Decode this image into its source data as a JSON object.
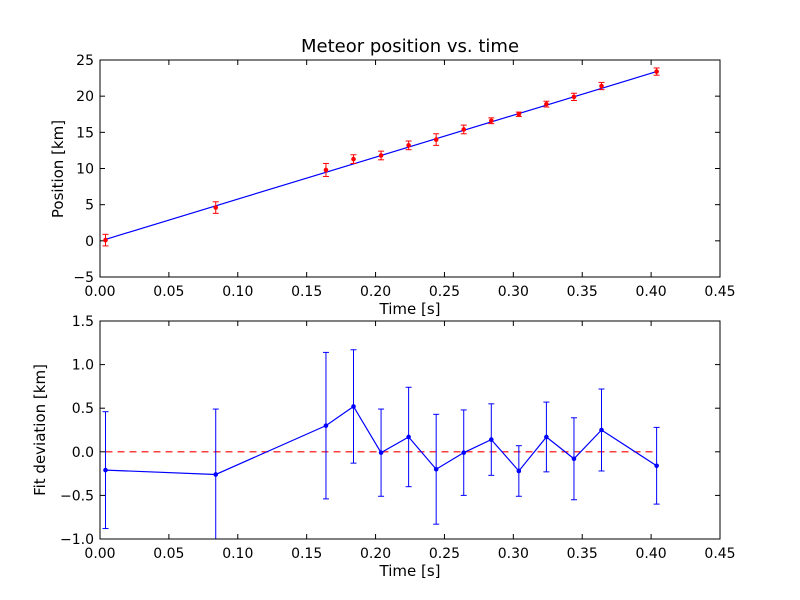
{
  "chart_data": [
    {
      "type": "scatter",
      "title": "Meteor position vs. time",
      "xlabel": "Time [s]",
      "ylabel": "Position [km]",
      "xlim": [
        0.0,
        0.45
      ],
      "ylim": [
        -5,
        25
      ],
      "xticks": [
        "0.00",
        "0.05",
        "0.10",
        "0.15",
        "0.20",
        "0.25",
        "0.30",
        "0.35",
        "0.40",
        "0.45"
      ],
      "yticks": [
        "−5",
        "0",
        "5",
        "10",
        "15",
        "20",
        "25"
      ],
      "grid": false,
      "series": [
        {
          "kind": "errorbar-points",
          "color": "#ff0000",
          "x": [
            0.004,
            0.084,
            0.164,
            0.184,
            0.204,
            0.224,
            0.244,
            0.264,
            0.284,
            0.304,
            0.324,
            0.344,
            0.364,
            0.404
          ],
          "y": [
            0.1,
            4.6,
            9.8,
            11.3,
            11.8,
            13.2,
            14.0,
            15.4,
            16.6,
            17.5,
            18.9,
            19.9,
            21.4,
            23.4
          ],
          "yerr": [
            0.8,
            0.8,
            0.9,
            0.6,
            0.6,
            0.6,
            0.8,
            0.6,
            0.4,
            0.3,
            0.4,
            0.5,
            0.5,
            0.5
          ]
        },
        {
          "kind": "fit-line",
          "color": "#0000ff",
          "x": [
            0.004,
            0.404
          ],
          "y": [
            0.2,
            23.4
          ]
        }
      ]
    },
    {
      "type": "line",
      "title": "",
      "xlabel": "Time [s]",
      "ylabel": "Fit deviation [km]",
      "xlim": [
        0.0,
        0.45
      ],
      "ylim": [
        -1.0,
        1.5
      ],
      "xticks": [
        "0.00",
        "0.05",
        "0.10",
        "0.15",
        "0.20",
        "0.25",
        "0.30",
        "0.35",
        "0.40",
        "0.45"
      ],
      "yticks": [
        "−1.0",
        "−0.5",
        "0.0",
        "0.5",
        "1.0",
        "1.5"
      ],
      "grid": false,
      "series": [
        {
          "kind": "errorbar-line",
          "color": "#0000ff",
          "x": [
            0.004,
            0.084,
            0.164,
            0.184,
            0.204,
            0.224,
            0.244,
            0.264,
            0.284,
            0.304,
            0.324,
            0.344,
            0.364,
            0.404
          ],
          "y": [
            -0.21,
            -0.26,
            0.3,
            0.52,
            -0.01,
            0.17,
            -0.2,
            -0.01,
            0.14,
            -0.22,
            0.17,
            -0.08,
            0.25,
            -0.16
          ],
          "yerr": [
            0.67,
            0.75,
            0.84,
            0.65,
            0.5,
            0.57,
            0.63,
            0.49,
            0.41,
            0.29,
            0.4,
            0.47,
            0.47,
            0.44
          ]
        },
        {
          "kind": "reference-line",
          "color": "#ff0000",
          "x": [
            0.004,
            0.404
          ],
          "y": [
            0.0,
            0.0
          ]
        }
      ]
    }
  ]
}
